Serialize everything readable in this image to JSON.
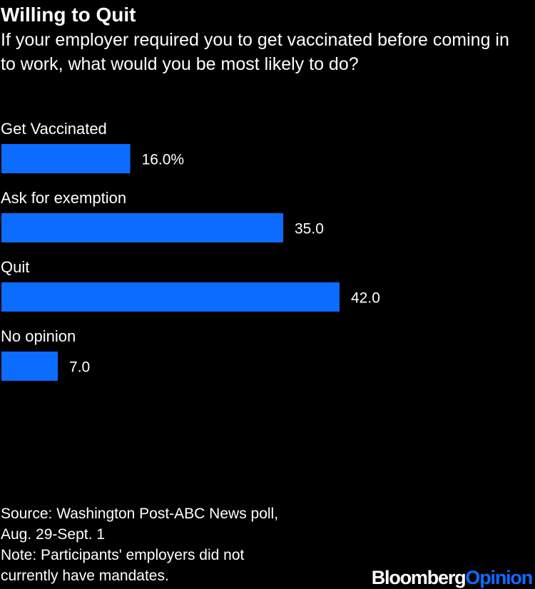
{
  "header": {
    "title": "Willing to Quit",
    "subtitle": "If your employer required you to get vaccinated before coming in to work, what would you be most likely to do?"
  },
  "chart_data": {
    "type": "bar",
    "orientation": "horizontal",
    "categories": [
      "Get Vaccinated",
      "Ask for exemption",
      "Quit",
      "No opinion"
    ],
    "values": [
      16.0,
      35.0,
      42.0,
      7.0
    ],
    "value_labels": [
      "16.0%",
      "35.0",
      "42.0",
      "7.0"
    ],
    "title": "Willing to Quit",
    "xlabel": "",
    "ylabel": "",
    "xlim": [
      0,
      42.0
    ],
    "grid": false,
    "legend": "none",
    "bar_color": "#0b6cff"
  },
  "footer": {
    "source_line1": "Source: Washington Post-ABC News poll,",
    "source_line2": "Aug. 29-Sept. 1",
    "note_line1": "Note: Participants' employers did not",
    "note_line2": "currently have mandates."
  },
  "logo": {
    "brand": "Bloomberg",
    "opinion": "Opinion",
    "brand_color": "#ffffff",
    "opinion_color": "#0b6cff"
  }
}
